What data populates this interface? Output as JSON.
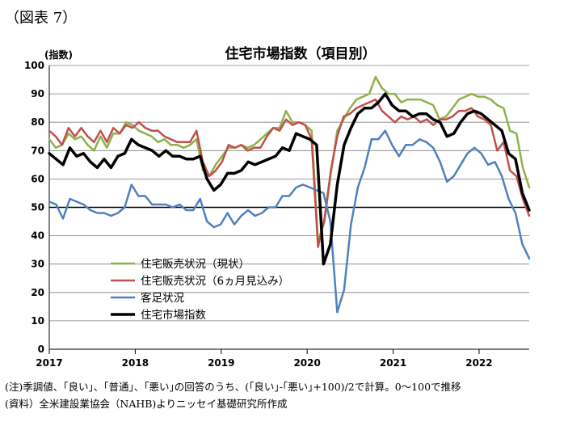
{
  "figure_label": "（図表 7）",
  "notes": {
    "note": "(注)季調値、｢良い｣、｢普通｣、｢悪い｣の回答のうち、(｢良い｣-｢悪い｣+100)/2で計算。0～100で推移",
    "source": "(資料）全米建設業協会（NAHB)よりニッセイ基礎研究所作成"
  },
  "chart_data": {
    "type": "line",
    "title": "住宅市場指数（項目別）",
    "ylabel": "(指数)",
    "xlabel": "",
    "ylim": [
      0,
      100
    ],
    "yticks": [
      0,
      10,
      20,
      30,
      40,
      50,
      60,
      70,
      80,
      90,
      100
    ],
    "xlim": [
      "2017-01",
      "2022-08"
    ],
    "xticks": [
      "2017",
      "2018",
      "2019",
      "2020",
      "2021",
      "2022"
    ],
    "reference_line": 50,
    "grid": "horizontal",
    "legend_position": "lower-left",
    "series": [
      {
        "name": "住宅販売状況（現状）",
        "color": "#8db24a",
        "width": 2.5,
        "values": [
          74,
          71,
          72,
          76,
          74,
          75,
          72,
          70,
          75,
          71,
          76,
          76,
          80,
          79,
          77,
          76,
          75,
          73,
          74,
          72,
          72,
          71,
          72,
          74,
          63,
          61,
          65,
          68,
          71,
          71,
          72,
          71,
          72,
          74,
          76,
          78,
          78,
          84,
          80,
          80,
          79,
          77,
          38,
          45,
          62,
          77,
          81,
          85,
          88,
          89,
          90,
          96,
          92,
          90,
          90,
          87,
          88,
          88,
          88,
          87,
          86,
          81,
          82,
          85,
          88,
          89,
          90,
          89,
          89,
          88,
          86,
          85,
          77,
          76,
          64,
          57
        ]
      },
      {
        "name": "住宅販売状況（6ヵ月見込み）",
        "color": "#c0504d",
        "width": 2.5,
        "values": [
          77,
          75,
          72,
          78,
          75,
          78,
          75,
          73,
          77,
          73,
          78,
          76,
          79,
          78,
          80,
          78,
          77,
          77,
          75,
          74,
          73,
          73,
          73,
          77,
          66,
          61,
          63,
          66,
          72,
          71,
          72,
          70,
          71,
          71,
          75,
          78,
          77,
          81,
          79,
          80,
          79,
          74,
          36,
          46,
          63,
          75,
          82,
          83,
          85,
          86,
          87,
          88,
          84,
          82,
          80,
          82,
          81,
          82,
          80,
          81,
          79,
          81,
          81,
          82,
          84,
          84,
          85,
          82,
          81,
          79,
          70,
          73,
          63,
          61,
          53,
          47
        ]
      },
      {
        "name": "客足状況",
        "color": "#4f81bd",
        "width": 2.5,
        "values": [
          52,
          51,
          46,
          53,
          52,
          51,
          49,
          48,
          48,
          47,
          48,
          50,
          58,
          54,
          54,
          51,
          51,
          51,
          50,
          51,
          49,
          49,
          53,
          45,
          43,
          44,
          48,
          44,
          47,
          49,
          47,
          48,
          50,
          50,
          54,
          54,
          57,
          58,
          57,
          56,
          55,
          45,
          13,
          21,
          44,
          57,
          64,
          74,
          74,
          77,
          72,
          68,
          72,
          72,
          74,
          73,
          71,
          66,
          59,
          61,
          65,
          69,
          71,
          69,
          65,
          66,
          61,
          53,
          48,
          37,
          32
        ]
      },
      {
        "name": "住宅市場指数",
        "color": "#000000",
        "width": 3.5,
        "values": [
          69,
          67,
          65,
          71,
          68,
          69,
          66,
          64,
          67,
          64,
          68,
          69,
          74,
          72,
          71,
          70,
          68,
          70,
          68,
          68,
          67,
          67,
          68,
          60,
          56,
          58,
          62,
          62,
          63,
          66,
          65,
          66,
          67,
          68,
          71,
          70,
          76,
          75,
          74,
          72,
          30,
          37,
          58,
          72,
          78,
          83,
          85,
          85,
          87,
          90,
          86,
          84,
          84,
          82,
          83,
          83,
          81,
          80,
          75,
          76,
          80,
          83,
          84,
          83,
          81,
          79,
          77,
          69,
          67,
          55,
          49
        ]
      }
    ]
  }
}
